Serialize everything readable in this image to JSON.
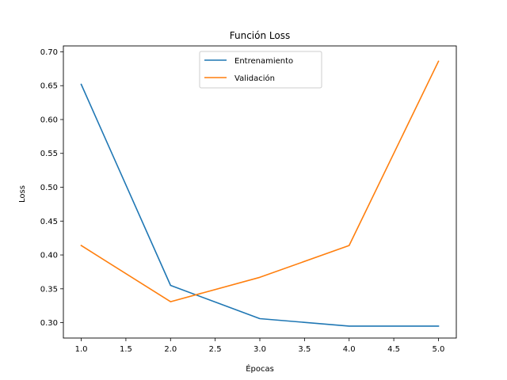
{
  "chart_data": {
    "type": "line",
    "title": "Función Loss",
    "xlabel": "Épocas",
    "ylabel": "Loss",
    "x": [
      1.0,
      2.0,
      3.0,
      4.0,
      5.0
    ],
    "series": [
      {
        "name": "Entrenamiento",
        "color": "#1f77b4",
        "values": [
          0.652,
          0.355,
          0.306,
          0.295,
          0.295
        ]
      },
      {
        "name": "Validación",
        "color": "#ff7f0e",
        "values": [
          0.414,
          0.331,
          0.367,
          0.414,
          0.686
        ]
      }
    ],
    "xlim": [
      0.8,
      5.2
    ],
    "ylim": [
      0.2773,
      0.7087
    ],
    "xticks": [
      "1.0",
      "1.5",
      "2.0",
      "2.5",
      "3.0",
      "3.5",
      "4.0",
      "4.5",
      "5.0"
    ],
    "yticks": [
      "0.30",
      "0.35",
      "0.40",
      "0.45",
      "0.50",
      "0.55",
      "0.60",
      "0.65",
      "0.70"
    ],
    "grid": false,
    "legend_position": "top-center"
  }
}
